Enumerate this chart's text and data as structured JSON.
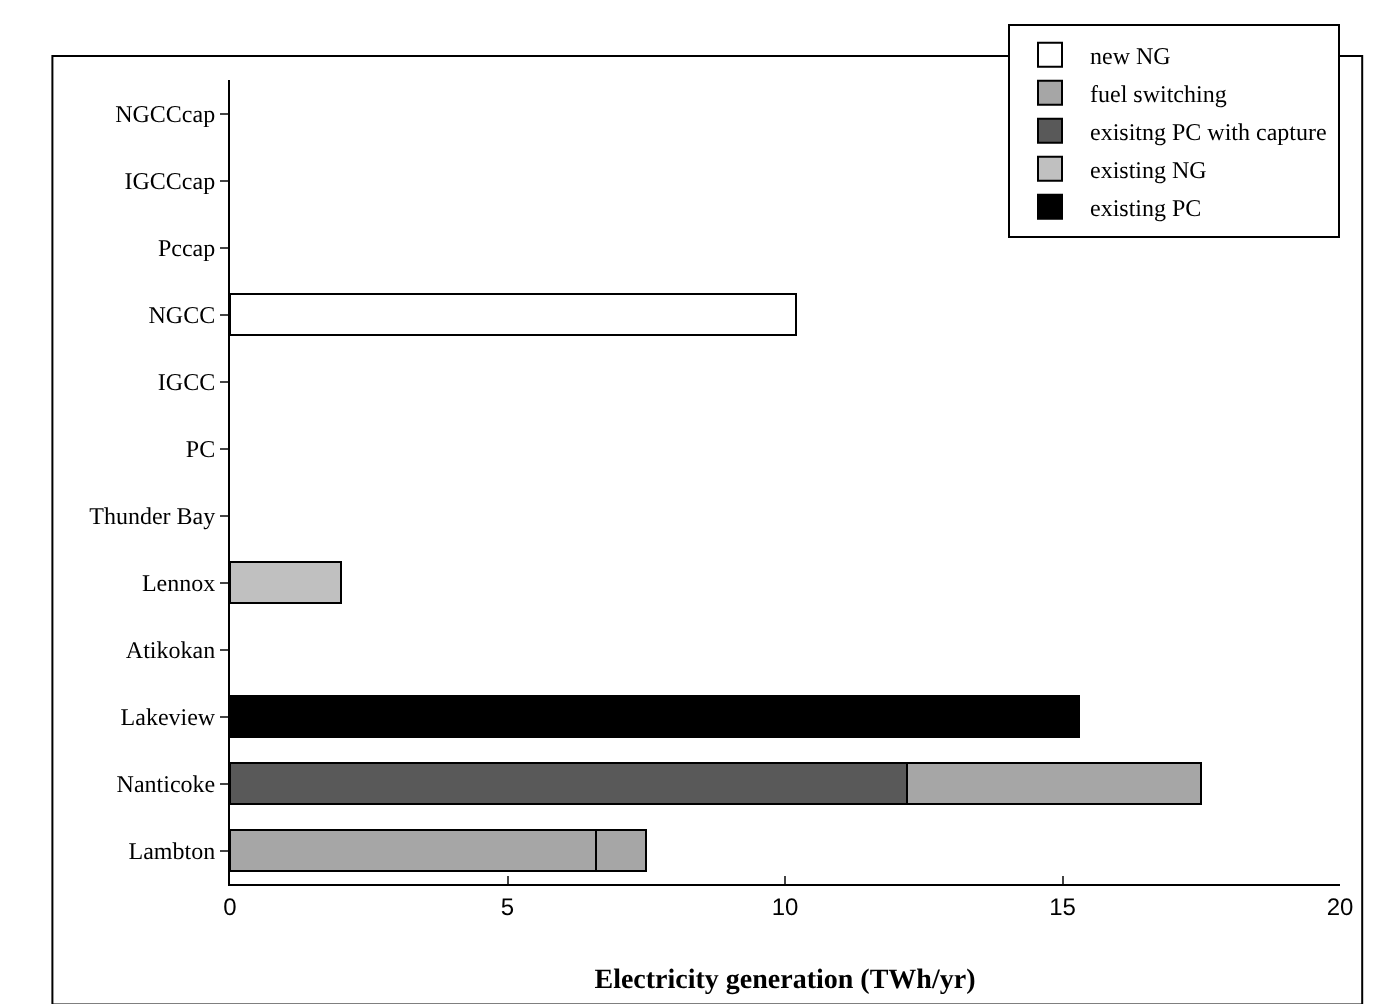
{
  "chart_data": {
    "type": "bar",
    "orientation": "horizontal",
    "stacked": true,
    "xlabel": "Electricity generation (TWh/yr)",
    "categories": [
      "NGCCcap",
      "IGCCcap",
      "Pccap",
      "NGCC",
      "IGCC",
      "PC",
      "Thunder Bay",
      "Lennox",
      "Atikokan",
      "Lakeview",
      "Nanticoke",
      "Lambton"
    ],
    "series": [
      {
        "name": "existing PC",
        "color": "#000000",
        "values": [
          null,
          null,
          null,
          null,
          null,
          null,
          null,
          null,
          null,
          15.3,
          null,
          null
        ]
      },
      {
        "name": "existing NG",
        "color": "#c0c0c0",
        "values": [
          null,
          null,
          null,
          null,
          null,
          null,
          null,
          2.0,
          null,
          null,
          null,
          null
        ]
      },
      {
        "name": "exisitng PC with capture",
        "color": "#595959",
        "values": [
          null,
          null,
          null,
          null,
          null,
          null,
          null,
          null,
          null,
          null,
          12.2,
          null
        ]
      },
      {
        "name": "fuel switching",
        "color": "#a6a6a6",
        "values": [
          null,
          null,
          null,
          null,
          null,
          null,
          null,
          null,
          null,
          null,
          5.3,
          6.6
        ]
      },
      {
        "color": "#a6a6a6",
        "values": [
          null,
          null,
          null,
          null,
          null,
          null,
          null,
          null,
          null,
          null,
          null,
          0.9
        ]
      },
      {
        "name": "new NG",
        "color": "#ffffff",
        "values": [
          null,
          null,
          null,
          10.2,
          null,
          null,
          null,
          null,
          null,
          null,
          null,
          null
        ]
      }
    ],
    "xlim": [
      0,
      20
    ],
    "xticks": [
      0,
      5,
      10,
      15,
      20
    ],
    "grid": false,
    "legend": "top right"
  }
}
